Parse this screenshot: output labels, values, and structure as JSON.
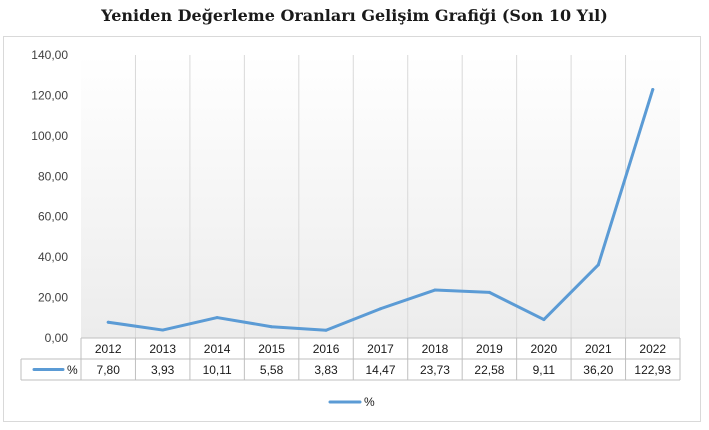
{
  "chart_data": {
    "type": "line",
    "title": "Yeniden Değerleme Oranları Gelişim Grafiği (Son 10 Yıl)",
    "categories": [
      "2012",
      "2013",
      "2014",
      "2015",
      "2016",
      "2017",
      "2018",
      "2019",
      "2020",
      "2021",
      "2022"
    ],
    "series": [
      {
        "name": "%",
        "values": [
          7.8,
          3.93,
          10.11,
          5.58,
          3.83,
          14.47,
          23.73,
          22.58,
          9.11,
          36.2,
          122.93
        ],
        "labels": [
          "7,80",
          "3,93",
          "10,11",
          "5,58",
          "3,83",
          "14,47",
          "23,73",
          "22,58",
          "9,11",
          "36,20",
          "122,93"
        ],
        "color": "#5b9bd5"
      }
    ],
    "ylim": [
      0,
      140
    ],
    "yticks": [
      0,
      20,
      40,
      60,
      80,
      100,
      120,
      140
    ],
    "ytick_labels": [
      "0,00",
      "20,00",
      "40,00",
      "60,00",
      "80,00",
      "100,00",
      "120,00",
      "140,00"
    ],
    "grid": "vertical",
    "legend_position": "bottom",
    "data_table": true
  }
}
